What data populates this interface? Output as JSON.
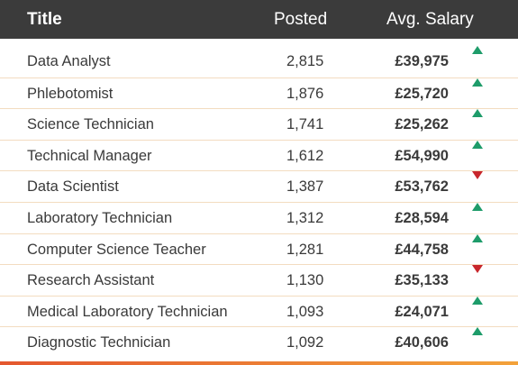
{
  "table": {
    "headers": {
      "title": "Title",
      "posted": "Posted",
      "salary": "Avg. Salary"
    },
    "rows": [
      {
        "title": "Data Analyst",
        "posted": "2,815",
        "salary": "£39,975",
        "trend": "up",
        "trend_icon": "trend-up-icon"
      },
      {
        "title": "Phlebotomist",
        "posted": "1,876",
        "salary": "£25,720",
        "trend": "up",
        "trend_icon": "trend-up-icon"
      },
      {
        "title": "Science Technician",
        "posted": "1,741",
        "salary": "£25,262",
        "trend": "up",
        "trend_icon": "trend-up-icon"
      },
      {
        "title": "Technical Manager",
        "posted": "1,612",
        "salary": "£54,990",
        "trend": "up",
        "trend_icon": "trend-up-icon"
      },
      {
        "title": "Data Scientist",
        "posted": "1,387",
        "salary": "£53,762",
        "trend": "down",
        "trend_icon": "trend-down-icon"
      },
      {
        "title": "Laboratory Technician",
        "posted": "1,312",
        "salary": "£28,594",
        "trend": "up",
        "trend_icon": "trend-up-icon"
      },
      {
        "title": "Computer Science Teacher",
        "posted": "1,281",
        "salary": "£44,758",
        "trend": "up",
        "trend_icon": "trend-up-icon"
      },
      {
        "title": "Research Assistant",
        "posted": "1,130",
        "salary": "£35,133",
        "trend": "down",
        "trend_icon": "trend-down-icon"
      },
      {
        "title": "Medical Laboratory Technician",
        "posted": "1,093",
        "salary": "£24,071",
        "trend": "up",
        "trend_icon": "trend-up-icon"
      },
      {
        "title": "Diagnostic Technician",
        "posted": "1,092",
        "salary": "£40,606",
        "trend": "up",
        "trend_icon": "trend-up-icon"
      }
    ]
  },
  "colors": {
    "header_bg": "#3b3b3b",
    "header_text": "#ffffff",
    "row_text": "#3a3a3a",
    "divider": "#f3dcc0",
    "trend_up": "#1e9c6a",
    "trend_down": "#c8262b",
    "accent_bar_start": "#e4572e",
    "accent_bar_end": "#f3a23a"
  }
}
